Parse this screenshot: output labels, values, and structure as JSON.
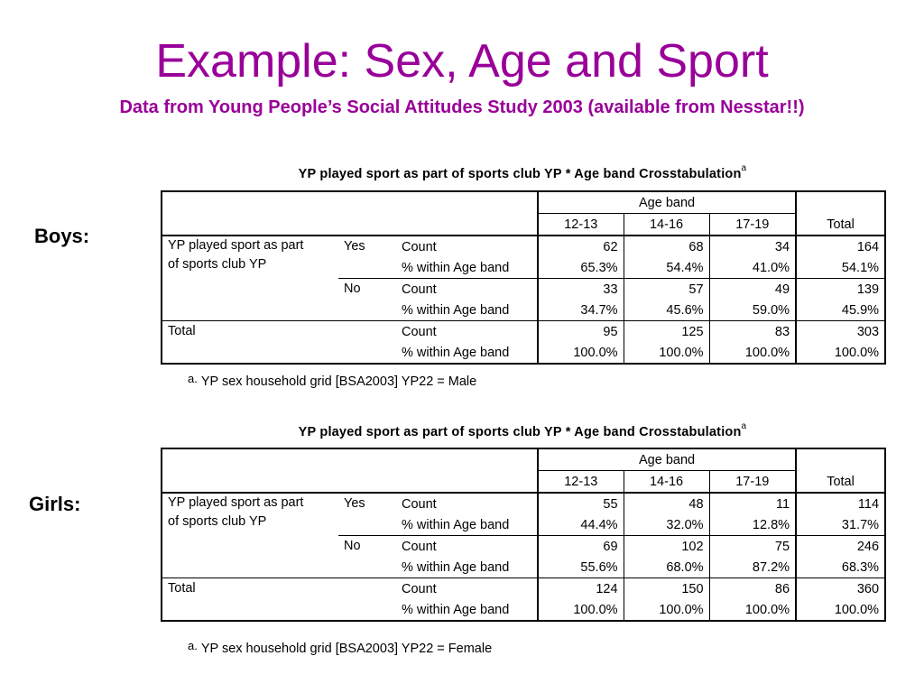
{
  "slide": {
    "title": "Example: Sex, Age and Sport",
    "subtitle": "Data from Young People’s Social Attitudes Study 2003 (available from Nesstar!!)"
  },
  "tables": [
    {
      "group_label": "Boys:",
      "caption": "YP played sport as part of sports club YP * Age band Crosstabulation",
      "caption_mark": "a",
      "col_group_header": "Age band",
      "col_headers": [
        "12-13",
        "14-16",
        "17-19",
        "Total"
      ],
      "row_variable": "YP played sport as part of sports club YP",
      "row_variable_line1": "YP played sport as part",
      "row_variable_line2": "of sports club YP",
      "rows": [
        {
          "category": "Yes",
          "stat": "Count",
          "values": [
            "62",
            "68",
            "34",
            "164"
          ]
        },
        {
          "category": "",
          "stat": "% within Age band",
          "values": [
            "65.3%",
            "54.4%",
            "41.0%",
            "54.1%"
          ]
        },
        {
          "category": "No",
          "stat": "Count",
          "values": [
            "33",
            "57",
            "49",
            "139"
          ]
        },
        {
          "category": "",
          "stat": "% within Age band",
          "values": [
            "34.7%",
            "45.6%",
            "59.0%",
            "45.9%"
          ]
        },
        {
          "category": "Total",
          "stat": "Count",
          "values": [
            "95",
            "125",
            "83",
            "303"
          ]
        },
        {
          "category": "",
          "stat": "% within Age band",
          "values": [
            "100.0%",
            "100.0%",
            "100.0%",
            "100.0%"
          ]
        }
      ],
      "footnote_mark": "a.",
      "footnote": "YP sex household grid  [BSA2003] YP22 = Male"
    },
    {
      "group_label": "Girls:",
      "caption": "YP played sport as part of sports club YP * Age band Crosstabulation",
      "caption_mark": "a",
      "col_group_header": "Age band",
      "col_headers": [
        "12-13",
        "14-16",
        "17-19",
        "Total"
      ],
      "row_variable": "YP played sport as part of sports club YP",
      "row_variable_line1": "YP played sport as part",
      "row_variable_line2": "of sports club YP",
      "rows": [
        {
          "category": "Yes",
          "stat": "Count",
          "values": [
            "55",
            "48",
            "11",
            "114"
          ]
        },
        {
          "category": "",
          "stat": "% within Age band",
          "values": [
            "44.4%",
            "32.0%",
            "12.8%",
            "31.7%"
          ]
        },
        {
          "category": "No",
          "stat": "Count",
          "values": [
            "69",
            "102",
            "75",
            "246"
          ]
        },
        {
          "category": "",
          "stat": "% within Age band",
          "values": [
            "55.6%",
            "68.0%",
            "87.2%",
            "68.3%"
          ]
        },
        {
          "category": "Total",
          "stat": "Count",
          "values": [
            "124",
            "150",
            "86",
            "360"
          ]
        },
        {
          "category": "",
          "stat": "% within Age band",
          "values": [
            "100.0%",
            "100.0%",
            "100.0%",
            "100.0%"
          ]
        }
      ],
      "footnote_mark": "a.",
      "footnote": "YP sex household grid  [BSA2003] YP22 = Female"
    }
  ],
  "colors": {
    "title": "#990099",
    "text": "#000000",
    "background": "#ffffff"
  }
}
